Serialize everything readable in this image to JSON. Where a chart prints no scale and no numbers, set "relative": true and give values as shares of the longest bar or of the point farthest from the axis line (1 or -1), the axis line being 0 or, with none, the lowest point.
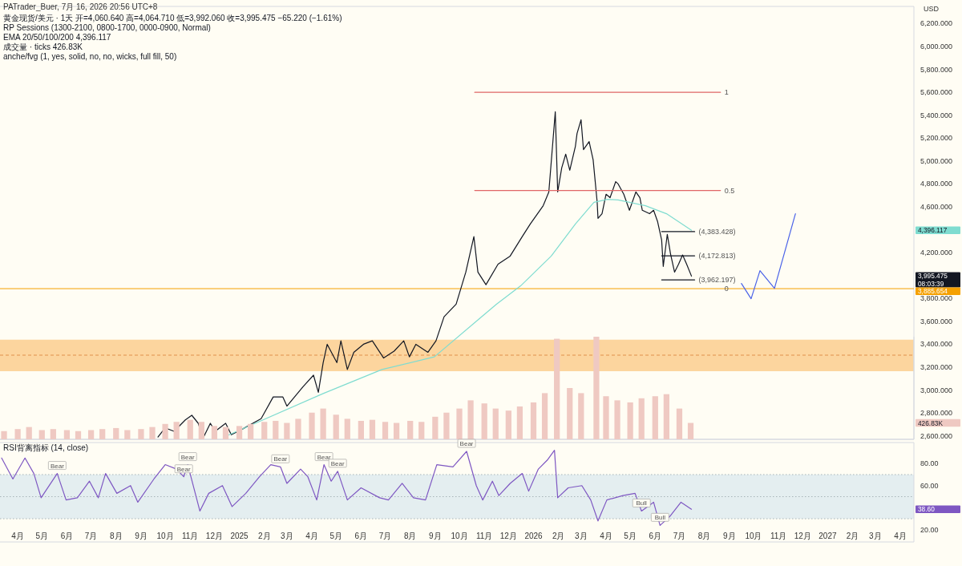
{
  "chart_data": [
    {
      "type": "line",
      "title": "黄金现货/美元 · 1天  开=4,060.640 高=4,064.710 低=3,992.060 收=3,995.475 −65.220 (−1.61%)",
      "subtitle": "PATrader_Buer, 7月 16, 2026 20:56 UTC+8",
      "ylabel": "USD",
      "xlim": [
        "2024-03-10",
        "2027-04-18"
      ],
      "ylim": [
        2570,
        6350
      ],
      "tick_labels": "y",
      "yticks": [
        {
          "value": 2600,
          "label": "2,600.000"
        },
        {
          "value": 2800,
          "label": "2,800.000"
        },
        {
          "value": 3000,
          "label": "3,000.000"
        },
        {
          "value": 3200,
          "label": "3,200.000"
        },
        {
          "value": 3400,
          "label": "3,400.000"
        },
        {
          "value": 3600,
          "label": "3,600.000"
        },
        {
          "value": 3800,
          "label": "3,800.000"
        },
        {
          "value": 4200,
          "label": "4,200.000"
        },
        {
          "value": 4600,
          "label": "4,600.000"
        },
        {
          "value": 4800,
          "label": "4,800.000"
        },
        {
          "value": 5000,
          "label": "5,000.000"
        },
        {
          "value": 5200,
          "label": "5,200.000"
        },
        {
          "value": 5400,
          "label": "5,400.000"
        },
        {
          "value": 5600,
          "label": "5,600.000"
        },
        {
          "value": 5800,
          "label": "5,800.000"
        },
        {
          "value": 6000,
          "label": "6,000.000"
        },
        {
          "value": 6200,
          "label": "6,200.000"
        }
      ],
      "bands": [
        {
          "axis": "y",
          "from": 3165,
          "to": 3440,
          "color": "#fcd59e"
        }
      ],
      "ref_lines": [
        {
          "axis": "y",
          "value": 3305,
          "color": "#e0904a",
          "line_style": "dashed"
        },
        {
          "axis": "y",
          "value": 3885.654,
          "label": "3,885.654",
          "color": "#f5a000"
        }
      ],
      "series": [
        {
          "color": "#131722",
          "x": [
            "2024-09-22",
            "2024-10-01",
            "2024-10-12",
            "2024-10-26",
            "2024-11-03",
            "2024-11-11",
            "2024-11-17",
            "2024-11-26",
            "2024-12-02",
            "2024-12-15",
            "2024-12-22",
            "2025-01-05",
            "2025-01-28",
            "2025-02-12",
            "2025-02-24",
            "2025-03-01",
            "2025-03-21",
            "2025-04-03",
            "2025-04-09",
            "2025-04-15",
            "2025-04-20",
            "2025-05-02",
            "2025-05-07",
            "2025-05-15",
            "2025-05-23",
            "2025-06-04",
            "2025-06-15",
            "2025-06-29",
            "2025-07-12",
            "2025-07-24",
            "2025-07-31",
            "2025-08-08",
            "2025-08-23",
            "2025-09-02",
            "2025-09-12",
            "2025-09-27",
            "2025-10-09",
            "2025-10-19",
            "2025-10-24",
            "2025-11-03",
            "2025-11-18",
            "2025-12-03",
            "2025-12-18",
            "2025-12-28",
            "2026-01-13",
            "2026-01-20",
            "2026-01-28",
            "2026-01-31",
            "2026-02-05",
            "2026-02-10",
            "2026-02-15",
            "2026-02-22",
            "2026-02-24",
            "2026-03-01",
            "2026-03-04",
            "2026-03-11",
            "2026-03-16",
            "2026-03-21",
            "2026-03-22",
            "2026-03-27",
            "2026-04-01",
            "2026-04-06",
            "2026-04-13",
            "2026-04-16",
            "2026-04-23",
            "2026-04-30",
            "2026-05-08",
            "2026-05-13",
            "2026-05-16",
            "2026-05-25",
            "2026-05-30",
            "2026-06-04",
            "2026-06-09",
            "2026-06-11",
            "2026-06-16",
            "2026-06-20",
            "2026-06-25",
            "2026-06-30",
            "2026-07-05",
            "2026-07-10",
            "2026-07-16"
          ],
          "values": [
            2590,
            2670,
            2640,
            2740,
            2780,
            2710,
            2580,
            2710,
            2640,
            2710,
            2610,
            2660,
            2750,
            2940,
            2940,
            2860,
            3030,
            3130,
            2980,
            3240,
            3400,
            3240,
            3430,
            3180,
            3330,
            3400,
            3430,
            3280,
            3340,
            3430,
            3290,
            3400,
            3330,
            3430,
            3640,
            3750,
            4030,
            4340,
            4030,
            3920,
            4100,
            4170,
            4340,
            4450,
            4610,
            4730,
            5430,
            4730,
            4940,
            5060,
            4920,
            5130,
            5240,
            5360,
            5100,
            5170,
            5010,
            4640,
            4500,
            4540,
            4710,
            4680,
            4820,
            4800,
            4710,
            4570,
            4730,
            4680,
            4570,
            4540,
            4570,
            4470,
            4310,
            4080,
            4360,
            4190,
            4030,
            4100,
            4180,
            4100,
            3995.475
          ]
        },
        {
          "color": "#7fdcd0",
          "x": [
            "2024-12-16",
            "2025-04-15",
            "2025-06-27",
            "2025-08-31",
            "2025-10-27",
            "2025-11-16",
            "2025-12-16",
            "2026-01-23",
            "2026-02-22",
            "2026-03-17",
            "2026-04-03",
            "2026-04-16",
            "2026-05-20",
            "2026-06-15",
            "2026-07-16"
          ],
          "values": [
            2600,
            2970,
            3180,
            3290,
            3630,
            3750,
            3910,
            4170,
            4450,
            4640,
            4665,
            4660,
            4610,
            4540,
            4396.117
          ]
        },
        {
          "color": "#e06666",
          "x": [
            "2025-10-20",
            "2026-08-21"
          ],
          "values": [
            5600,
            5600
          ]
        },
        {
          "color": "#e06666",
          "x": [
            "2025-10-20",
            "2026-08-21"
          ],
          "values": [
            4743,
            4743
          ]
        },
        {
          "color": "#131722",
          "x": [
            "2026-06-09",
            "2026-07-20"
          ],
          "values": [
            4383.428,
            4383.428
          ]
        },
        {
          "color": "#131722",
          "x": [
            "2026-06-09",
            "2026-07-20"
          ],
          "values": [
            4172.813,
            4172.813
          ]
        },
        {
          "color": "#131722",
          "x": [
            "2026-06-09",
            "2026-07-20"
          ],
          "values": [
            3962.197,
            3962.197
          ]
        },
        {
          "color": "#4a62e8",
          "x": [
            "2026-09-16",
            "2026-09-28",
            "2026-10-09",
            "2026-10-27",
            "2026-11-22"
          ],
          "values": [
            3931,
            3798,
            4043,
            3889,
            4540
          ]
        }
      ],
      "annotations": [
        "RP Sessions (1300-2100, 0800-1700, 0000-0900, Normal)",
        "EMA 20/50/100/200 4,396.117",
        "成交量 · ticks 426.83K",
        "anche/fvg (1, yes, solid, no, no, wicks, full fill, 50)",
        "3,995.475 08:03:39",
        "4,396.117",
        {
          "text": "1",
          "x": "2026-08-21",
          "y": 5600
        },
        {
          "text": "0.5",
          "x": "2026-08-21",
          "y": 4743
        },
        {
          "text": "0",
          "x": "2026-08-21",
          "y": 3885.654
        },
        {
          "text": "(4,383.428)",
          "x": "2026-07-20",
          "y": 4383.428
        },
        {
          "text": "(4,172.813)",
          "x": "2026-07-20",
          "y": 4172.813
        },
        {
          "text": "(3,962.197)",
          "x": "2026-07-20",
          "y": 3962.197
        }
      ]
    },
    {
      "type": "bar",
      "relative": true,
      "tick_labels": false,
      "xlim": [
        "2024-03-10",
        "2027-04-18"
      ],
      "color": "#efc9c2",
      "x": [
        "2024-03-15",
        "2024-04-01",
        "2024-04-15",
        "2024-05-01",
        "2024-05-15",
        "2024-06-01",
        "2024-06-15",
        "2024-07-01",
        "2024-07-15",
        "2024-08-01",
        "2024-08-15",
        "2024-09-01",
        "2024-09-15",
        "2024-10-01",
        "2024-10-15",
        "2024-11-01",
        "2024-11-15",
        "2024-12-01",
        "2024-12-15",
        "2025-01-01",
        "2025-01-15",
        "2025-02-01",
        "2025-02-15",
        "2025-03-01",
        "2025-03-15",
        "2025-04-01",
        "2025-04-15",
        "2025-05-01",
        "2025-05-15",
        "2025-06-01",
        "2025-06-15",
        "2025-07-01",
        "2025-07-15",
        "2025-08-01",
        "2025-08-15",
        "2025-09-01",
        "2025-09-15",
        "2025-10-01",
        "2025-10-15",
        "2025-11-01",
        "2025-11-15",
        "2025-12-01",
        "2025-12-15",
        "2026-01-01",
        "2026-01-15",
        "2026-01-30",
        "2026-02-15",
        "2026-03-01",
        "2026-03-20",
        "2026-04-01",
        "2026-04-15",
        "2026-05-01",
        "2026-05-15",
        "2026-06-01",
        "2026-06-15",
        "2026-07-01",
        "2026-07-15"
      ],
      "values": [
        0.08,
        0.1,
        0.12,
        0.09,
        0.1,
        0.09,
        0.08,
        0.09,
        0.1,
        0.11,
        0.09,
        0.1,
        0.12,
        0.15,
        0.17,
        0.19,
        0.17,
        0.13,
        0.12,
        0.13,
        0.15,
        0.17,
        0.18,
        0.16,
        0.2,
        0.26,
        0.3,
        0.24,
        0.2,
        0.18,
        0.19,
        0.17,
        0.16,
        0.18,
        0.17,
        0.22,
        0.26,
        0.3,
        0.38,
        0.35,
        0.3,
        0.28,
        0.32,
        0.36,
        0.45,
        0.98,
        0.5,
        0.45,
        1,
        0.42,
        0.38,
        0.36,
        0.4,
        0.42,
        0.44,
        0.3,
        0.16
      ],
      "annotations": [
        "426.83K"
      ]
    },
    {
      "type": "line",
      "title": "RSI背离指标 (14, close)",
      "xlim": [
        "2024-03-10",
        "2027-04-18"
      ],
      "ylim": [
        9,
        99
      ],
      "xticks": [
        {
          "value": "2024-04-01",
          "label": "4月"
        },
        {
          "value": "2024-05-01",
          "label": "5月"
        },
        {
          "value": "2024-06-01",
          "label": "6月"
        },
        {
          "value": "2024-07-01",
          "label": "7月"
        },
        {
          "value": "2024-08-01",
          "label": "8月"
        },
        {
          "value": "2024-09-01",
          "label": "9月"
        },
        {
          "value": "2024-10-01",
          "label": "10月"
        },
        {
          "value": "2024-11-01",
          "label": "11月"
        },
        {
          "value": "2024-12-01",
          "label": "12月"
        },
        {
          "value": "2025-01-01",
          "label": "2025"
        },
        {
          "value": "2025-02-01",
          "label": "2月"
        },
        {
          "value": "2025-03-01",
          "label": "3月"
        },
        {
          "value": "2025-04-01",
          "label": "4月"
        },
        {
          "value": "2025-05-01",
          "label": "5月"
        },
        {
          "value": "2025-06-01",
          "label": "6月"
        },
        {
          "value": "2025-07-01",
          "label": "7月"
        },
        {
          "value": "2025-08-01",
          "label": "8月"
        },
        {
          "value": "2025-09-01",
          "label": "9月"
        },
        {
          "value": "2025-10-01",
          "label": "10月"
        },
        {
          "value": "2025-11-01",
          "label": "11月"
        },
        {
          "value": "2025-12-01",
          "label": "12月"
        },
        {
          "value": "2026-01-01",
          "label": "2026"
        },
        {
          "value": "2026-02-01",
          "label": "2月"
        },
        {
          "value": "2026-03-01",
          "label": "3月"
        },
        {
          "value": "2026-04-01",
          "label": "4月"
        },
        {
          "value": "2026-05-01",
          "label": "5月"
        },
        {
          "value": "2026-06-01",
          "label": "6月"
        },
        {
          "value": "2026-07-01",
          "label": "7月"
        },
        {
          "value": "2026-08-01",
          "label": "8月"
        },
        {
          "value": "2026-09-01",
          "label": "9月"
        },
        {
          "value": "2026-10-01",
          "label": "10月"
        },
        {
          "value": "2026-11-01",
          "label": "11月"
        },
        {
          "value": "2026-12-01",
          "label": "12月"
        },
        {
          "value": "2027-01-01",
          "label": "2027"
        },
        {
          "value": "2027-02-01",
          "label": "2月"
        },
        {
          "value": "2027-03-01",
          "label": "3月"
        },
        {
          "value": "2027-04-01",
          "label": "4月"
        }
      ],
      "yticks": [
        {
          "value": 20,
          "label": "20.00"
        },
        {
          "value": 60,
          "label": "60.00"
        },
        {
          "value": 80,
          "label": "80.00"
        }
      ],
      "bands": [
        {
          "axis": "y",
          "from": 30,
          "to": 70,
          "color": "#e4eef0"
        }
      ],
      "ref_lines": [
        {
          "axis": "y",
          "value": 70,
          "color": "#a8b4b8",
          "line_style": "dotted"
        },
        {
          "axis": "y",
          "value": 50,
          "color": "#a8b4b8",
          "line_style": "dotted"
        },
        {
          "axis": "y",
          "value": 30,
          "color": "#a8b4b8",
          "line_style": "dotted"
        }
      ],
      "series": [
        {
          "color": "#7e57c2",
          "x": [
            "2024-03-12",
            "2024-03-26",
            "2024-04-10",
            "2024-04-21",
            "2024-04-30",
            "2024-05-20",
            "2024-05-31",
            "2024-06-14",
            "2024-06-29",
            "2024-07-10",
            "2024-07-19",
            "2024-08-02",
            "2024-08-19",
            "2024-08-28",
            "2024-09-17",
            "2024-10-01",
            "2024-10-15",
            "2024-10-24",
            "2024-10-29",
            "2024-11-13",
            "2024-11-24",
            "2024-12-11",
            "2024-12-23",
            "2025-01-09",
            "2025-01-26",
            "2025-02-09",
            "2025-02-21",
            "2025-03-01",
            "2025-03-18",
            "2025-03-27",
            "2025-04-07",
            "2025-04-16",
            "2025-04-25",
            "2025-05-03",
            "2025-05-15",
            "2025-06-01",
            "2025-06-24",
            "2025-07-05",
            "2025-07-22",
            "2025-08-05",
            "2025-08-20",
            "2025-09-03",
            "2025-09-23",
            "2025-10-10",
            "2025-10-22",
            "2025-10-30",
            "2025-11-11",
            "2025-11-19",
            "2025-12-03",
            "2025-12-18",
            "2025-12-26",
            "2026-01-07",
            "2026-01-18",
            "2026-01-27",
            "2026-01-31",
            "2026-02-13",
            "2026-03-02",
            "2026-03-13",
            "2026-03-22",
            "2026-04-02",
            "2026-04-22",
            "2026-05-07",
            "2026-05-15",
            "2026-05-30",
            "2026-06-07",
            "2026-06-19",
            "2026-07-03",
            "2026-07-16"
          ],
          "values": [
            85,
            66,
            85,
            71,
            49,
            71,
            47,
            49,
            64,
            49,
            71,
            53,
            60,
            45,
            66,
            79,
            75,
            68,
            79,
            37,
            53,
            60,
            41,
            53,
            68,
            79,
            77,
            62,
            75,
            68,
            47,
            79,
            64,
            73,
            47,
            58,
            49,
            47,
            62,
            49,
            47,
            79,
            77,
            91,
            60,
            47,
            64,
            51,
            62,
            71,
            55,
            75,
            83,
            92,
            49,
            58,
            60,
            47,
            28,
            47,
            51,
            53,
            37,
            45,
            24,
            32,
            45,
            38.6
          ]
        }
      ],
      "annotations": [
        "38.60",
        {
          "text": "Bear",
          "x": "2024-05-20",
          "y": 71
        },
        {
          "text": "Bear",
          "x": "2024-10-24",
          "y": 68
        },
        {
          "text": "Bear",
          "x": "2024-10-29",
          "y": 79
        },
        {
          "text": "Bear",
          "x": "2025-02-21",
          "y": 77
        },
        {
          "text": "Bear",
          "x": "2025-04-16",
          "y": 79
        },
        {
          "text": "Bear",
          "x": "2025-05-03",
          "y": 73
        },
        {
          "text": "Bear",
          "x": "2025-10-10",
          "y": 91
        },
        {
          "text": "Bull",
          "x": "2026-05-15",
          "y": 37
        },
        {
          "text": "Bull",
          "x": "2026-06-07",
          "y": 24
        }
      ]
    }
  ]
}
